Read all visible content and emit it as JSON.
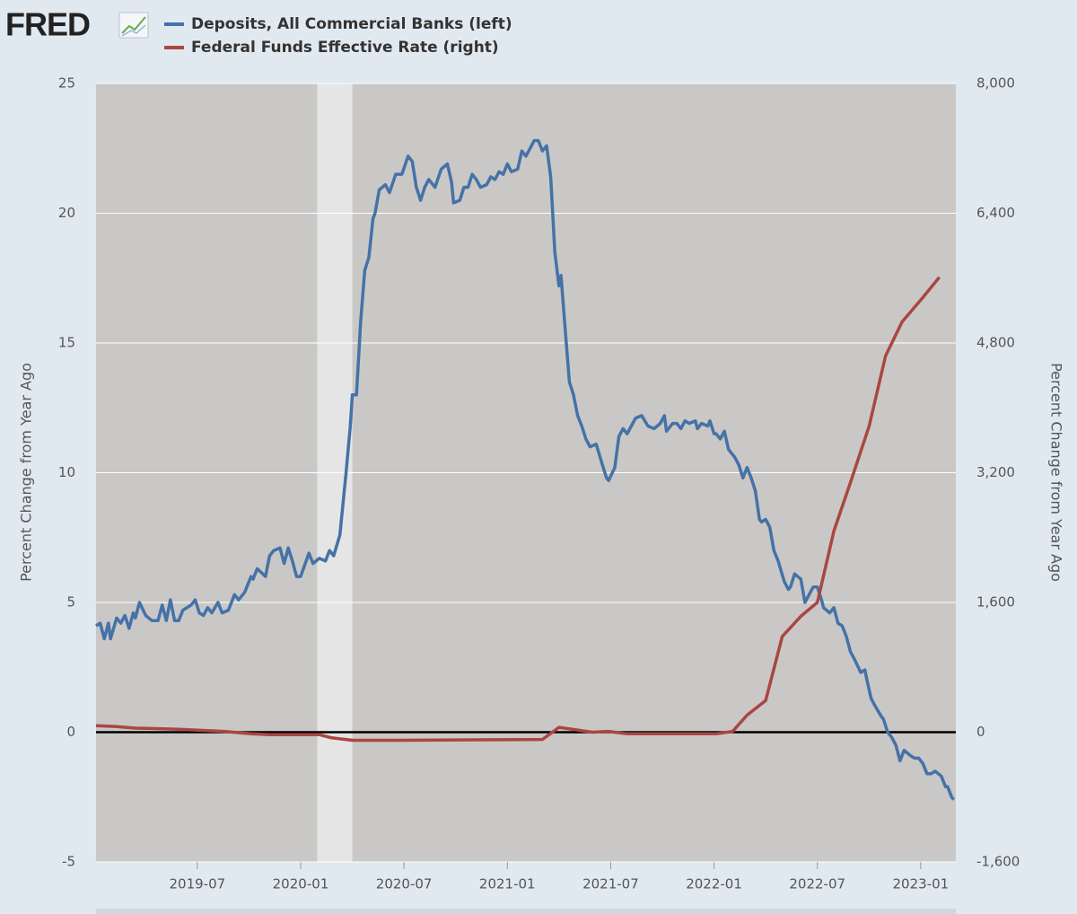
{
  "chart_data": {
    "type": "line",
    "logo": "FRED",
    "y_label": "Percent Change from Year Ago",
    "y2_label": "Percent Change from Year Ago",
    "xlim": [
      2019.01,
      2023.17
    ],
    "xticks": [
      {
        "value": 2019.5,
        "label": "2019-07"
      },
      {
        "value": 2020.0,
        "label": "2020-01"
      },
      {
        "value": 2020.5,
        "label": "2020-07"
      },
      {
        "value": 2021.0,
        "label": "2021-01"
      },
      {
        "value": 2021.5,
        "label": "2021-07"
      },
      {
        "value": 2022.0,
        "label": "2022-01"
      },
      {
        "value": 2022.5,
        "label": "2022-07"
      },
      {
        "value": 2023.0,
        "label": "2023-01"
      }
    ],
    "ylim": [
      -5,
      25
    ],
    "yticks": [
      -5,
      0,
      5,
      10,
      15,
      20,
      25
    ],
    "y2lim": [
      -1600,
      8000
    ],
    "y2ticks": [
      {
        "value": -1600,
        "label": "-1,600"
      },
      0,
      {
        "value": 1600,
        "label": "1,600"
      },
      {
        "value": 3200,
        "label": "3,200"
      },
      {
        "value": 4800,
        "label": "4,800"
      },
      {
        "value": 6400,
        "label": "6,400"
      },
      {
        "value": 8000,
        "label": "8,000"
      }
    ],
    "grid": true,
    "zero_line": true,
    "shaded_periods": [
      [
        2020.08,
        2020.25
      ]
    ],
    "series": [
      {
        "name": "Deposits, All Commercial Banks (left)",
        "color": "#4572a7",
        "axis": "y",
        "x": [
          2019.01,
          2019.03,
          2019.05,
          2019.07,
          2019.08,
          2019.11,
          2019.13,
          2019.15,
          2019.17,
          2019.19,
          2019.2,
          2019.22,
          2019.25,
          2019.28,
          2019.31,
          2019.33,
          2019.35,
          2019.37,
          2019.39,
          2019.41,
          2019.43,
          2019.47,
          2019.49,
          2019.51,
          2019.53,
          2019.55,
          2019.57,
          2019.6,
          2019.62,
          2019.65,
          2019.68,
          2019.7,
          2019.73,
          2019.76,
          2019.77,
          2019.79,
          2019.83,
          2019.85,
          2019.87,
          2019.9,
          2019.92,
          2019.94,
          2019.96,
          2019.98,
          2020.0,
          2020.04,
          2020.06,
          2020.09,
          2020.12,
          2020.14,
          2020.16,
          2020.19,
          2020.22,
          2020.24,
          2020.25,
          2020.27,
          2020.29,
          2020.31,
          2020.33,
          2020.35,
          2020.36,
          2020.38,
          2020.41,
          2020.43,
          2020.46,
          2020.49,
          2020.52,
          2020.54,
          2020.56,
          2020.58,
          2020.6,
          2020.62,
          2020.65,
          2020.68,
          2020.71,
          2020.73,
          2020.74,
          2020.77,
          2020.79,
          2020.81,
          2020.83,
          2020.85,
          2020.87,
          2020.9,
          2020.92,
          2020.94,
          2020.96,
          2020.98,
          2021.0,
          2021.02,
          2021.05,
          2021.07,
          2021.09,
          2021.11,
          2021.13,
          2021.15,
          2021.17,
          2021.19,
          2021.21,
          2021.23,
          2021.25,
          2021.26,
          2021.28,
          2021.3,
          2021.32,
          2021.34,
          2021.36,
          2021.38,
          2021.4,
          2021.43,
          2021.46,
          2021.48,
          2021.49,
          2021.52,
          2021.54,
          2021.56,
          2021.58,
          2021.6,
          2021.62,
          2021.65,
          2021.68,
          2021.71,
          2021.74,
          2021.76,
          2021.77,
          2021.8,
          2021.82,
          2021.84,
          2021.86,
          2021.88,
          2021.91,
          2021.92,
          2021.94,
          2021.97,
          2021.98,
          2022.0,
          2022.01,
          2022.03,
          2022.05,
          2022.07,
          2022.1,
          2022.12,
          2022.14,
          2022.16,
          2022.18,
          2022.2,
          2022.22,
          2022.23,
          2022.25,
          2022.27,
          2022.29,
          2022.31,
          2022.34,
          2022.36,
          2022.37,
          2022.39,
          2022.42,
          2022.44,
          2022.46,
          2022.48,
          2022.5,
          2022.52,
          2022.53,
          2022.56,
          2022.58,
          2022.6,
          2022.62,
          2022.64,
          2022.66,
          2022.68,
          2022.71,
          2022.73,
          2022.74,
          2022.76,
          2022.78,
          2022.81,
          2022.82,
          2022.84,
          2022.86,
          2022.88,
          2022.9,
          2022.92,
          2022.95,
          2022.97,
          2022.99,
          2023.01,
          2023.03,
          2023.05,
          2023.07,
          2023.1,
          2023.12,
          2023.13,
          2023.15,
          2023.16
        ],
        "values": [
          4.1,
          4.2,
          3.6,
          4.2,
          3.6,
          4.4,
          4.2,
          4.5,
          4.0,
          4.6,
          4.4,
          5.0,
          4.5,
          4.3,
          4.3,
          4.9,
          4.3,
          5.1,
          4.3,
          4.3,
          4.7,
          4.9,
          5.1,
          4.6,
          4.5,
          4.8,
          4.6,
          5.0,
          4.6,
          4.7,
          5.3,
          5.1,
          5.4,
          6.0,
          5.9,
          6.3,
          6.0,
          6.8,
          7.0,
          7.1,
          6.5,
          7.1,
          6.6,
          6.0,
          6.0,
          6.9,
          6.5,
          6.7,
          6.6,
          7.0,
          6.8,
          7.6,
          10.0,
          11.8,
          13.0,
          13.0,
          15.8,
          17.8,
          18.3,
          19.8,
          20.0,
          20.9,
          21.1,
          20.8,
          21.5,
          21.5,
          22.2,
          22.0,
          21.0,
          20.5,
          21.0,
          21.3,
          21.0,
          21.7,
          21.9,
          21.2,
          20.4,
          20.5,
          21.0,
          21.0,
          21.5,
          21.3,
          21.0,
          21.1,
          21.4,
          21.3,
          21.6,
          21.5,
          21.9,
          21.6,
          21.7,
          22.4,
          22.2,
          22.5,
          22.8,
          22.8,
          22.4,
          22.6,
          21.4,
          18.5,
          17.2,
          17.6,
          15.5,
          13.5,
          13.0,
          12.2,
          11.8,
          11.3,
          11.0,
          11.1,
          10.3,
          9.8,
          9.7,
          10.2,
          11.4,
          11.7,
          11.5,
          11.8,
          12.1,
          12.2,
          11.8,
          11.7,
          11.9,
          12.2,
          11.6,
          11.9,
          11.9,
          11.7,
          12.0,
          11.9,
          12.0,
          11.7,
          11.9,
          11.8,
          12.0,
          11.5,
          11.5,
          11.3,
          11.6,
          10.9,
          10.6,
          10.3,
          9.8,
          10.2,
          9.8,
          9.3,
          8.2,
          8.1,
          8.2,
          7.9,
          7.0,
          6.6,
          5.8,
          5.5,
          5.6,
          6.1,
          5.9,
          5.0,
          5.3,
          5.6,
          5.6,
          5.1,
          4.8,
          4.6,
          4.8,
          4.2,
          4.1,
          3.7,
          3.1,
          2.8,
          2.3,
          2.4,
          2.0,
          1.3,
          1.0,
          0.6,
          0.5,
          0.0,
          -0.2,
          -0.5,
          -1.1,
          -0.7,
          -0.9,
          -1.0,
          -1.0,
          -1.2,
          -1.6,
          -1.6,
          -1.5,
          -1.7,
          -2.1,
          -2.1,
          -2.5,
          -2.6
        ]
      },
      {
        "name": "Federal Funds Effective Rate (right)",
        "color": "#aa4643",
        "axis": "y2",
        "x": [
          2019.01,
          2019.11,
          2019.2,
          2019.28,
          2019.41,
          2019.63,
          2019.76,
          2019.85,
          2020.09,
          2020.15,
          2020.25,
          2020.5,
          2021.17,
          2021.25,
          2021.41,
          2021.49,
          2021.58,
          2022.01,
          2022.09,
          2022.16,
          2022.25,
          2022.33,
          2022.42,
          2022.5,
          2022.58,
          2022.66,
          2022.75,
          2022.83,
          2022.91,
          2023.01,
          2023.09
        ],
        "values": [
          80,
          70,
          50,
          45,
          35,
          10,
          -20,
          -30,
          -30,
          -70,
          -100,
          -100,
          -90,
          60,
          0,
          10,
          -20,
          -20,
          10,
          210,
          390,
          1180,
          1430,
          1600,
          2480,
          3080,
          3770,
          4640,
          5060,
          5360,
          5610
        ]
      }
    ]
  }
}
